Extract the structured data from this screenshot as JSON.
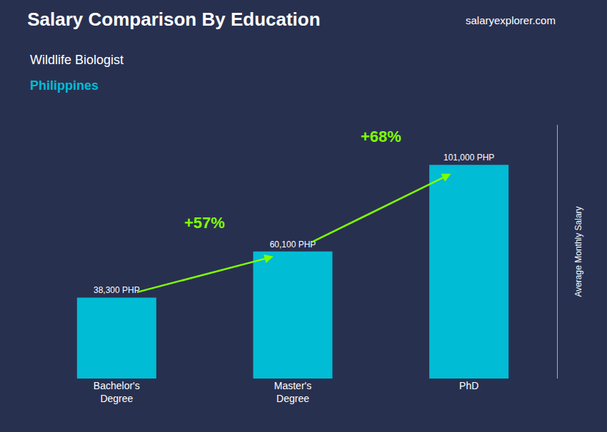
{
  "chart_data": {
    "type": "bar",
    "title": "Salary Comparison By Education",
    "subtitle": "Wildlife Biologist",
    "ylabel": "Average Monthly Salary",
    "categories": [
      "Bachelor's\nDegree",
      "Master's\nDegree",
      "PhD"
    ],
    "values": [
      38300,
      60100,
      101000
    ],
    "value_labels": [
      "38,300 PHP",
      "60,100 PHP",
      "101,000 PHP"
    ],
    "data_labels": true,
    "color": "#00bcd4",
    "ylim": [
      0,
      120000
    ],
    "grid": false,
    "tick_labels": "x",
    "annotations": [
      {
        "text": "Philippines",
        "color": "#00bcd4"
      },
      {
        "text": "salaryexplorer.com"
      },
      {
        "text": "+57%",
        "from": "Bachelor's\nDegree",
        "to": "Master's\nDegree",
        "color": "#7fff00"
      },
      {
        "text": "+68%",
        "from": "Master's\nDegree",
        "to": "PhD",
        "color": "#7fff00"
      }
    ]
  }
}
